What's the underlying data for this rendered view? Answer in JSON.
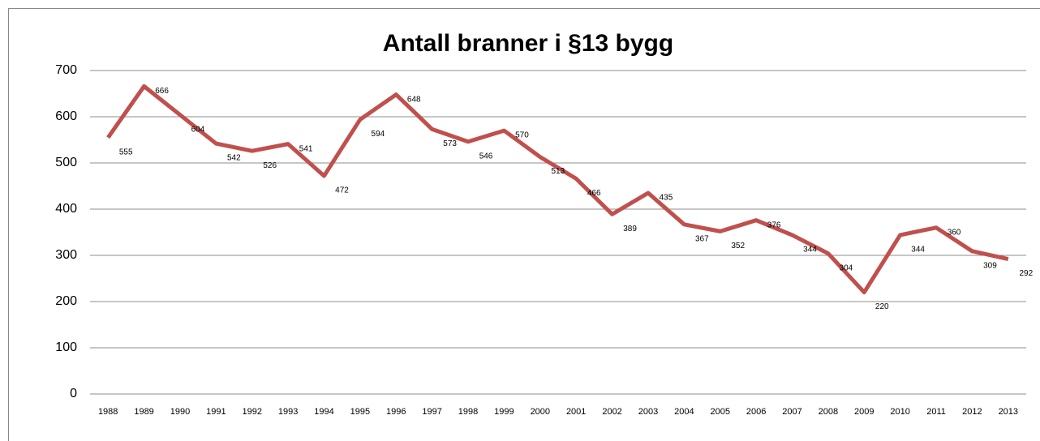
{
  "chart_data": {
    "type": "line",
    "title": "Antall branner i §13 bygg",
    "categories": [
      "1988",
      "1989",
      "1990",
      "1991",
      "1992",
      "1993",
      "1994",
      "1995",
      "1996",
      "1997",
      "1998",
      "1999",
      "2000",
      "2001",
      "2002",
      "2003",
      "2004",
      "2005",
      "2006",
      "2007",
      "2008",
      "2009",
      "2010",
      "2011",
      "2012",
      "2013"
    ],
    "series": [
      {
        "name": "Antall branner",
        "color": "#c0504d",
        "values": [
          555,
          666,
          604,
          542,
          526,
          541,
          472,
          594,
          648,
          573,
          546,
          570,
          513,
          466,
          389,
          435,
          367,
          352,
          376,
          344,
          304,
          220,
          344,
          360,
          309,
          292
        ]
      }
    ],
    "ylim": [
      0,
      700
    ],
    "yticks": [
      0,
      100,
      200,
      300,
      400,
      500,
      600,
      700
    ],
    "grid": true,
    "legend": false
  }
}
